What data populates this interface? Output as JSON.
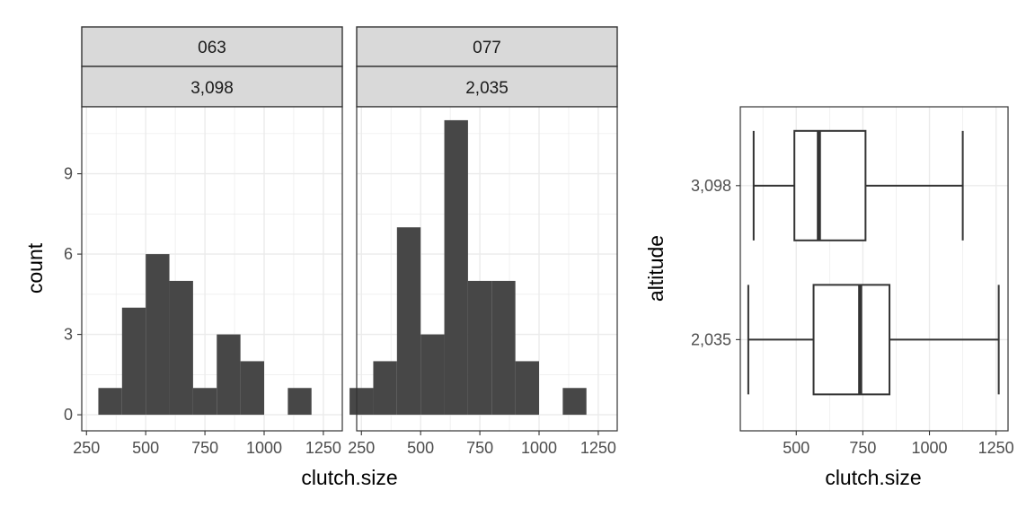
{
  "chart_data": [
    {
      "type": "histogram",
      "facet": {
        "top": "063",
        "bottom": "3,098"
      },
      "bin_centers": [
        250,
        350,
        450,
        550,
        650,
        750,
        850,
        950,
        1050,
        1150,
        1250
      ],
      "counts": [
        0,
        1,
        4,
        6,
        5,
        1,
        3,
        2,
        0,
        1,
        0
      ],
      "xlim": [
        230,
        1330
      ],
      "ylim": [
        -0.6,
        11.5
      ],
      "xticks": [
        250,
        500,
        750,
        1000,
        1250
      ],
      "xtick_labels": [
        "250",
        "500",
        "750",
        "1000",
        "1250"
      ],
      "yticks": [
        0,
        3,
        6,
        9
      ],
      "ytick_labels": [
        "0",
        "3",
        "6",
        "9"
      ]
    },
    {
      "type": "histogram",
      "facet": {
        "top": "077",
        "bottom": "2,035"
      },
      "bin_centers": [
        250,
        350,
        450,
        550,
        650,
        750,
        850,
        950,
        1050,
        1150,
        1250
      ],
      "counts": [
        1,
        2,
        7,
        3,
        11,
        5,
        5,
        2,
        0,
        1,
        0
      ],
      "xlim": [
        230,
        1330
      ],
      "ylim": [
        -0.6,
        11.5
      ],
      "xticks": [
        250,
        500,
        750,
        1000,
        1250
      ],
      "xtick_labels": [
        "250",
        "500",
        "750",
        "1000",
        "1250"
      ]
    },
    {
      "type": "boxplot",
      "orientation": "horizontal",
      "categories": [
        "3,098",
        "2,035"
      ],
      "boxes": [
        {
          "category": "3,098",
          "min": 340,
          "q1": 493,
          "median": 585,
          "q3": 760,
          "max": 1125
        },
        {
          "category": "2,035",
          "min": 320,
          "q1": 565,
          "median": 740,
          "q3": 850,
          "max": 1260
        }
      ],
      "xlim": [
        290,
        1295
      ],
      "xticks": [
        500,
        750,
        1000,
        1250
      ],
      "xtick_labels": [
        "500",
        "750",
        "1000",
        "1250"
      ]
    }
  ],
  "labels": {
    "hist_xlabel": "clutch.size",
    "hist_ylabel": "count",
    "box_xlabel": "clutch.size",
    "box_ylabel": "altitude"
  }
}
